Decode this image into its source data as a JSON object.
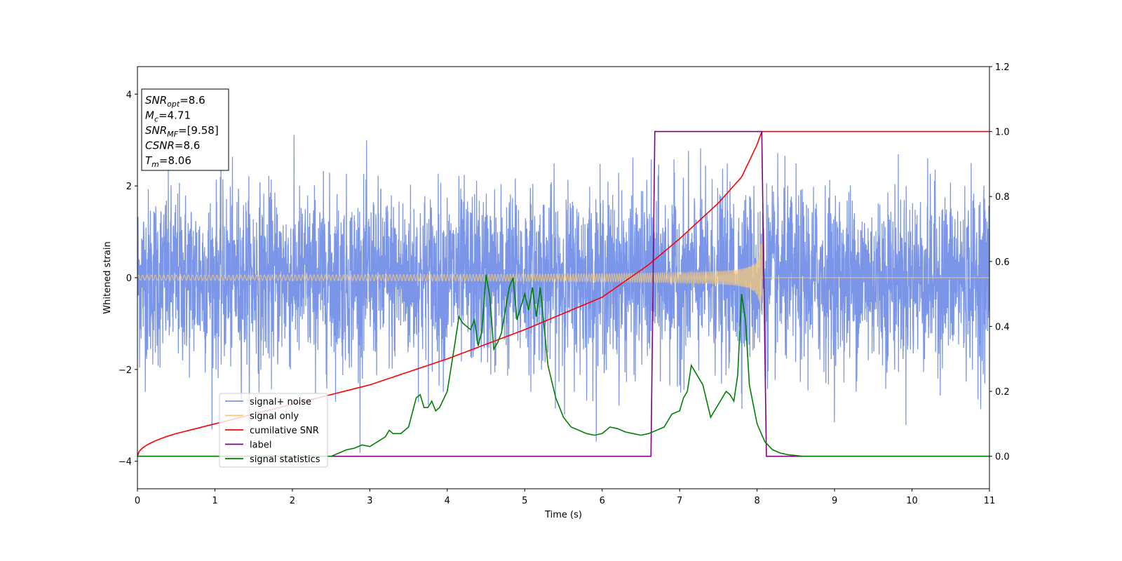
{
  "chart_data": {
    "type": "line",
    "xlabel": "Time (s)",
    "ylabel": "Whitened strain",
    "xlim": [
      0,
      11
    ],
    "ylim_left": [
      -4.6,
      4.6
    ],
    "ylim_right": [
      -0.1,
      1.2
    ],
    "x_ticks": [
      "0",
      "1",
      "2",
      "3",
      "4",
      "5",
      "6",
      "7",
      "8",
      "9",
      "10",
      "11"
    ],
    "y_ticks_left": [
      "4",
      "2",
      "0",
      "−2",
      "−4"
    ],
    "y_ticks_left_values": [
      4,
      2,
      0,
      -2,
      -4
    ],
    "y_ticks_right": [
      "1.2",
      "1.0",
      "0.8",
      "0.6",
      "0.4",
      "0.2",
      "0.0"
    ],
    "y_ticks_right_values": [
      1.2,
      1.0,
      0.8,
      0.6,
      0.4,
      0.2,
      0.0
    ],
    "legend_position": "lower-left",
    "info_box": {
      "position": "top-left",
      "lines": [
        {
          "base": "SNR",
          "sub": "opt",
          "value": "=8.6"
        },
        {
          "base": "M",
          "sub": "c",
          "value": "=4.71"
        },
        {
          "base": "SNR",
          "sub": "MF",
          "value": "=[9.58]"
        },
        {
          "base": "CSNR",
          "sub": "",
          "value": "=8.6"
        },
        {
          "base": "T",
          "sub": "m",
          "value": "=8.06"
        }
      ]
    },
    "series": [
      {
        "name": "signal+ noise",
        "axis": "left",
        "color": "#7b96e8",
        "kind": "noise",
        "approx_band": [
          -1.0,
          1.0
        ],
        "approx_peak": [
          -4.1,
          4.15
        ]
      },
      {
        "name": "signal only",
        "axis": "left",
        "color": "#f5c97a",
        "kind": "chirp",
        "merger_time": 8.06,
        "start_amplitude": 0.05,
        "peak_amplitude": 0.9
      },
      {
        "name": "cumilative SNR",
        "axis": "right",
        "color": "#ff0000",
        "x": [
          0,
          0.5,
          1,
          2,
          3,
          4,
          5,
          6,
          6.6,
          7,
          7.5,
          7.8,
          8.0,
          8.06,
          11
        ],
        "y": [
          0.0,
          0.07,
          0.1,
          0.16,
          0.22,
          0.3,
          0.39,
          0.49,
          0.59,
          0.67,
          0.78,
          0.86,
          0.96,
          1.0,
          1.0
        ]
      },
      {
        "name": "label",
        "axis": "right",
        "color": "#800080",
        "x": [
          0,
          6.63,
          6.68,
          8.06,
          8.12,
          11
        ],
        "y": [
          0.0,
          0.0,
          1.0,
          1.0,
          0.0,
          0.0
        ]
      },
      {
        "name": "signal statistics",
        "axis": "right",
        "color": "#008000",
        "x": [
          0,
          2.0,
          2.5,
          2.6,
          2.7,
          2.8,
          2.9,
          3.0,
          3.1,
          3.2,
          3.25,
          3.3,
          3.4,
          3.5,
          3.6,
          3.65,
          3.7,
          3.75,
          3.8,
          3.85,
          3.9,
          4.0,
          4.1,
          4.15,
          4.2,
          4.3,
          4.35,
          4.4,
          4.45,
          4.5,
          4.55,
          4.6,
          4.65,
          4.7,
          4.8,
          4.85,
          4.9,
          5.0,
          5.05,
          5.1,
          5.15,
          5.2,
          5.3,
          5.4,
          5.5,
          5.6,
          5.7,
          5.8,
          5.9,
          6.0,
          6.1,
          6.2,
          6.3,
          6.4,
          6.5,
          6.6,
          6.7,
          6.8,
          6.9,
          7.0,
          7.05,
          7.1,
          7.15,
          7.2,
          7.3,
          7.4,
          7.5,
          7.6,
          7.65,
          7.7,
          7.75,
          7.8,
          7.85,
          7.9,
          8.0,
          8.1,
          8.2,
          8.3,
          8.4,
          8.6,
          11
        ],
        "y": [
          0.0,
          0.0,
          0.0,
          0.01,
          0.02,
          0.025,
          0.035,
          0.03,
          0.045,
          0.06,
          0.08,
          0.07,
          0.07,
          0.09,
          0.18,
          0.19,
          0.15,
          0.15,
          0.17,
          0.14,
          0.15,
          0.2,
          0.35,
          0.43,
          0.41,
          0.39,
          0.42,
          0.34,
          0.39,
          0.56,
          0.49,
          0.33,
          0.35,
          0.38,
          0.52,
          0.55,
          0.42,
          0.5,
          0.45,
          0.52,
          0.43,
          0.52,
          0.28,
          0.18,
          0.12,
          0.09,
          0.08,
          0.07,
          0.065,
          0.07,
          0.09,
          0.085,
          0.075,
          0.07,
          0.065,
          0.07,
          0.08,
          0.09,
          0.13,
          0.14,
          0.18,
          0.2,
          0.28,
          0.26,
          0.22,
          0.12,
          0.16,
          0.2,
          0.19,
          0.17,
          0.25,
          0.5,
          0.42,
          0.22,
          0.1,
          0.045,
          0.02,
          0.01,
          0.005,
          0.0,
          0.0
        ]
      }
    ]
  }
}
